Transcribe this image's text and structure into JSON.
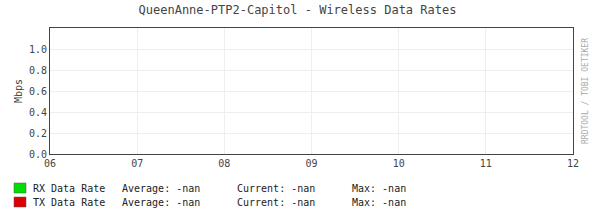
{
  "chart_data": {
    "type": "line",
    "title": "QueenAnne-PTP2-Capitol - Wireless Data Rates",
    "y_label": "Mbps",
    "categories": [
      "06",
      "07",
      "08",
      "09",
      "10",
      "11",
      "12"
    ],
    "series": [
      {
        "name": "RX Data Rate",
        "color": "#00dd00",
        "values": [
          null,
          null,
          null,
          null,
          null,
          null,
          null
        ]
      },
      {
        "name": "TX Data Rate",
        "color": "#dd0000",
        "values": [
          null,
          null,
          null,
          null,
          null,
          null,
          null
        ]
      }
    ],
    "ylim": [
      0.0,
      1.2
    ],
    "yticks": [
      {
        "value": 0.0,
        "label": "0.0"
      },
      0.2,
      0.4,
      0.6,
      0.8,
      {
        "value": 1.0,
        "label": "1.0"
      }
    ],
    "grid": true,
    "legend": "bottom",
    "annotations": [
      "Average: -nan",
      "Current: -nan",
      "Max: -nan",
      "Average: -nan",
      "Current: -nan",
      "Max: -nan",
      "RRDTOOL / TOBI OETIKER"
    ]
  }
}
